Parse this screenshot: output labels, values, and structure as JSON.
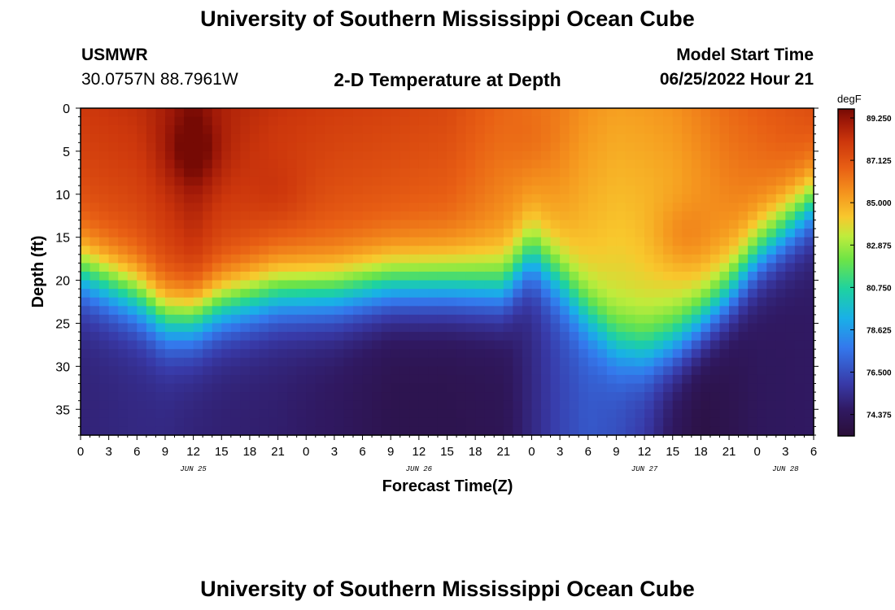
{
  "header": {
    "title": "University of Southern Mississippi Ocean Cube",
    "station": "USMWR",
    "coords": "30.0757N  88.7961W",
    "subtitle": "2-D Temperature at Depth",
    "start_label": "Model Start Time",
    "start_value": "06/25/2022 Hour 21"
  },
  "footer": {
    "title": "University of Southern Mississippi Ocean Cube"
  },
  "chart_data": {
    "type": "heatmap",
    "title": "2-D Temperature at Depth",
    "xlabel": "Forecast Time(Z)",
    "ylabel": "Depth (ft)",
    "x_range_hours": [
      0,
      78
    ],
    "x_ticks": [
      "0",
      "3",
      "6",
      "9",
      "12",
      "15",
      "18",
      "21",
      "0",
      "3",
      "6",
      "9",
      "12",
      "15",
      "18",
      "21",
      "0",
      "3",
      "6",
      "9",
      "12",
      "15",
      "18",
      "21",
      "0",
      "3",
      "6"
    ],
    "date_labels": [
      {
        "label": "JUN 25",
        "hour": 12
      },
      {
        "label": "JUN 26",
        "hour": 36
      },
      {
        "label": "JUN 27",
        "hour": 60
      },
      {
        "label": "JUN 28",
        "hour": 75
      }
    ],
    "y_range_ft": [
      0,
      38
    ],
    "y_ticks": [
      "0",
      "5",
      "10",
      "15",
      "20",
      "25",
      "30",
      "35"
    ],
    "colorbar": {
      "unit": "degF",
      "min": 73.3,
      "max": 89.7,
      "tick_labels": [
        "89.250",
        "87.125",
        "85.000",
        "82.875",
        "80.750",
        "78.625",
        "76.500",
        "74.375"
      ],
      "tick_values": [
        89.25,
        87.125,
        85.0,
        82.875,
        80.75,
        78.625,
        76.5,
        74.375
      ]
    },
    "profile_hours": [
      0,
      6,
      9,
      12,
      15,
      21,
      27,
      33,
      39,
      45,
      48,
      51,
      54,
      57,
      60,
      63,
      66,
      69,
      72,
      78
    ],
    "thermocline_depth_ft": [
      19,
      22,
      24.5,
      24.5,
      23,
      21.5,
      21.5,
      20.5,
      20.5,
      21,
      17,
      20,
      24,
      27.5,
      28.5,
      27.5,
      25,
      21.5,
      17,
      11
    ],
    "surface_temp_degF": [
      88.0,
      88.3,
      88.8,
      89.4,
      88.7,
      88.2,
      87.9,
      87.7,
      87.5,
      86.5,
      86.2,
      86.0,
      85.5,
      85.2,
      85.3,
      85.5,
      86.0,
      86.5,
      86.8,
      87.4
    ],
    "bottom_temp_degF": [
      75.0,
      75.2,
      75.2,
      75.0,
      74.9,
      74.8,
      74.5,
      74.0,
      74.0,
      74.2,
      75.2,
      76.2,
      76.8,
      76.5,
      75.8,
      74.4,
      73.7,
      74.0,
      74.4,
      74.6
    ],
    "warm_anomalies": [
      {
        "hour": 12,
        "depth_ft": 5,
        "degF": 1.1
      },
      {
        "hour": 21,
        "depth_ft": 10,
        "degF": 0.5
      },
      {
        "hour": 48,
        "depth_ft": 4,
        "degF": 0.4
      },
      {
        "hour": 64,
        "depth_ft": 15,
        "degF": 1.0
      }
    ]
  }
}
